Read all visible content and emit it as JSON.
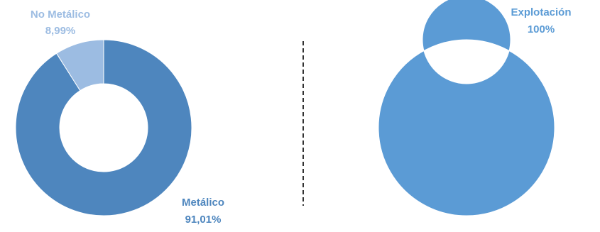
{
  "chart_data": [
    {
      "type": "pie",
      "donut": true,
      "slices": [
        {
          "label": "Metálico",
          "value": 91.01,
          "value_label": "91,01%",
          "color": "#4E86BE"
        },
        {
          "label": "No Metálico",
          "value": 8.99,
          "value_label": "8,99%",
          "color": "#9CBCE2"
        }
      ]
    },
    {
      "type": "pie",
      "donut": true,
      "slices": [
        {
          "label": "Explotación",
          "value": 100,
          "value_label": "100%",
          "color": "#5B9BD5"
        }
      ]
    }
  ],
  "divider": {
    "style": "dashed",
    "color": "#333333"
  }
}
